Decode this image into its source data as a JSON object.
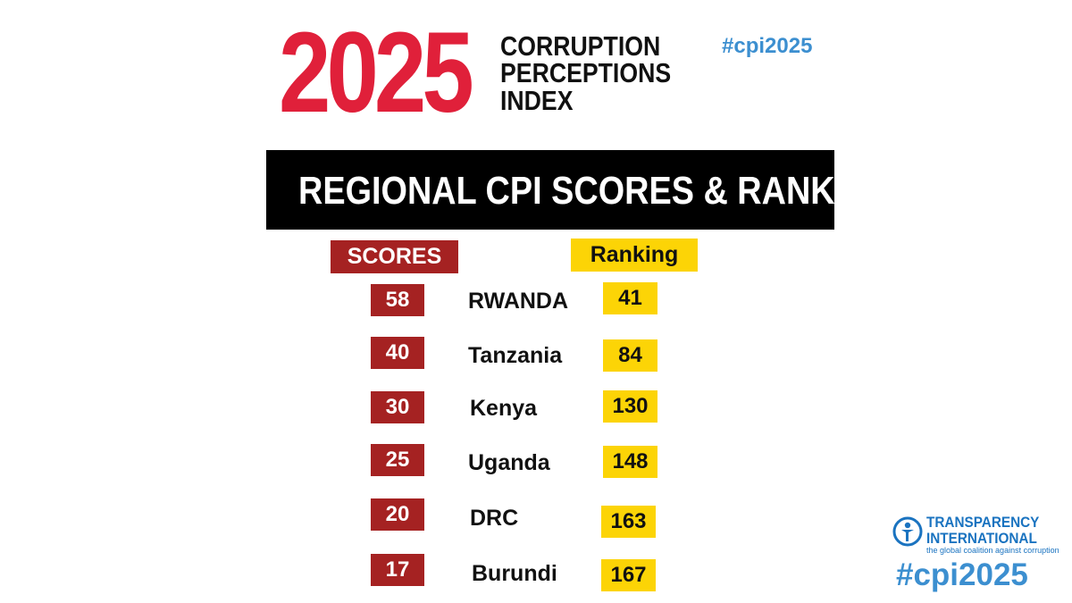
{
  "header": {
    "year": "2025",
    "index_title_lines": [
      "CORRUPTION",
      "PERCEPTIONS",
      "INDEX"
    ],
    "hashtag": "#cpi2025"
  },
  "banner": {
    "title": "REGIONAL CPI SCORES & RANKING"
  },
  "chart_data": {
    "type": "table",
    "title": "REGIONAL CPI SCORES & RANKING",
    "columns": [
      "SCORES",
      "",
      "Ranking"
    ],
    "rows": [
      {
        "country": "RWANDA",
        "score": "58",
        "ranking": "41"
      },
      {
        "country": "Tanzania",
        "score": "40",
        "ranking": "84"
      },
      {
        "country": "Kenya",
        "score": "30",
        "ranking": "130"
      },
      {
        "country": "Uganda",
        "score": "25",
        "ranking": "148"
      },
      {
        "country": "DRC",
        "score": "20",
        "ranking": "163"
      },
      {
        "country": "Burundi",
        "score": "17",
        "ranking": "167"
      }
    ]
  },
  "footer": {
    "org_name_lines": [
      "TRANSPARENCY",
      "INTERNATIONAL"
    ],
    "org_tagline": "the global coalition against corruption",
    "hashtag": "#cpi2025"
  },
  "colors": {
    "year_red": "#e0203a",
    "score_red": "#a52222",
    "ranking_yellow": "#fcd406",
    "hashtag_blue": "#3c8fd0",
    "ti_blue": "#1a73c0",
    "banner_black": "#000000"
  }
}
